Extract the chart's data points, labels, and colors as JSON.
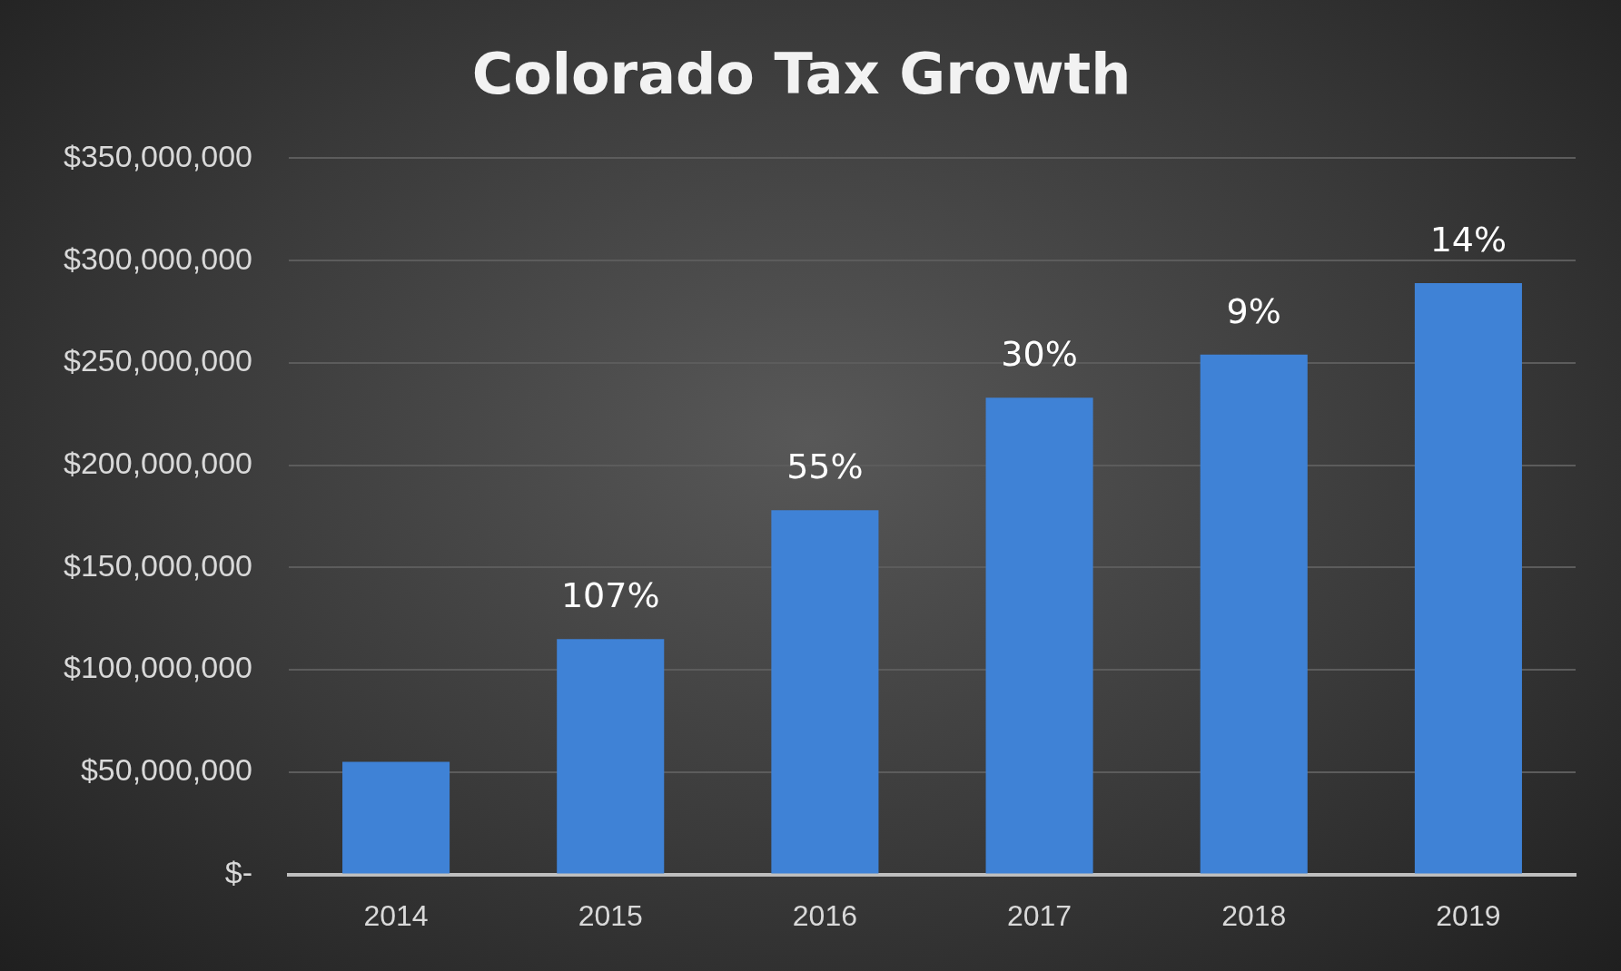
{
  "chart_data": {
    "type": "bar",
    "title": "Colorado Tax Growth",
    "categories": [
      "2014",
      "2015",
      "2016",
      "2017",
      "2018",
      "2019"
    ],
    "values": [
      55000000,
      115000000,
      178000000,
      233000000,
      254000000,
      289000000
    ],
    "annotations": [
      {
        "text": "107%",
        "x": "2015",
        "y": 115000000
      },
      {
        "text": "55%",
        "x": "2016",
        "y": 178000000
      },
      {
        "text": "30%",
        "x": "2017",
        "y": 233000000
      },
      {
        "text": "9%",
        "x": "2018",
        "y": 254000000
      },
      {
        "text": "14%",
        "x": "2019",
        "y": 289000000
      }
    ],
    "color": "#3f82d6",
    "ylim": [
      0,
      350000000
    ],
    "yticks": [
      {
        "value": 0,
        "label": "$-"
      },
      {
        "value": 50000000,
        "label": "$50,000,000"
      },
      {
        "value": 100000000,
        "label": "$100,000,000"
      },
      {
        "value": 150000000,
        "label": "$150,000,000"
      },
      {
        "value": 200000000,
        "label": "$200,000,000"
      },
      {
        "value": 250000000,
        "label": "$250,000,000"
      },
      {
        "value": 300000000,
        "label": "$300,000,000"
      },
      {
        "value": 350000000,
        "label": "$350,000,000"
      }
    ],
    "grid": "y"
  }
}
